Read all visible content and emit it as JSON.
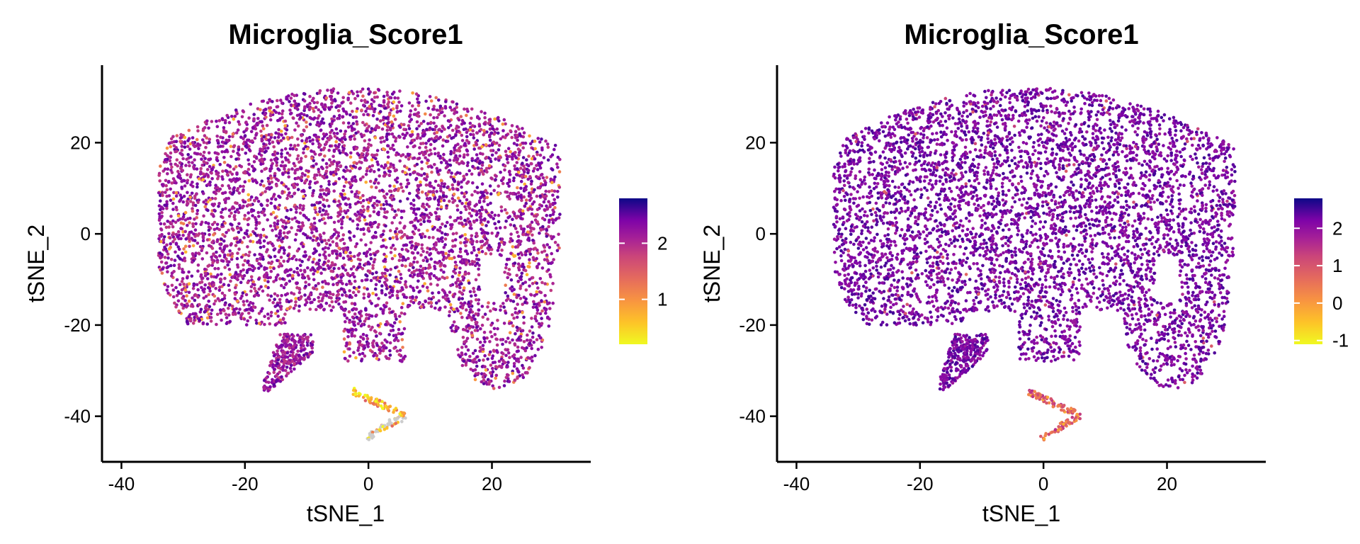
{
  "chart_data": [
    {
      "type": "scatter",
      "title": "Microglia_Score1",
      "xlabel": "tSNE_1",
      "ylabel": "tSNE_2",
      "xlim": [
        -42,
        36
      ],
      "ylim": [
        -50,
        37
      ],
      "x_ticks": [
        -40,
        -20,
        0,
        20
      ],
      "x_tick_labels": [
        "-40",
        "-20",
        "0",
        "20"
      ],
      "y_ticks": [
        -40,
        -20,
        0,
        20
      ],
      "y_tick_labels": [
        "-40",
        "-20",
        "0",
        "20"
      ],
      "grid": false,
      "legend": "right",
      "colorbar": {
        "palette": "plasma-reversed",
        "range": [
          0.2,
          2.8
        ],
        "ticks": [
          1,
          2
        ],
        "tick_labels": [
          "1",
          "2"
        ]
      },
      "na_color": "#cccccc",
      "main_cloud": {
        "x_range": [
          -34,
          31
        ],
        "y_range": [
          -34,
          32
        ],
        "typical_score": 2.2,
        "low_score_fraction": 0.08
      },
      "arm": {
        "x_range": [
          -17,
          -9
        ],
        "y_range": [
          -35,
          -22
        ],
        "typical_score": 2.2
      },
      "small_cluster": {
        "x_range": [
          -4,
          6
        ],
        "y_range": [
          -45,
          -34
        ],
        "typical_score": 0.8,
        "gray_points": true
      }
    },
    {
      "type": "scatter",
      "title": "Microglia_Score1",
      "xlabel": "tSNE_1",
      "ylabel": "tSNE_2",
      "xlim": [
        -42,
        36
      ],
      "ylim": [
        -50,
        37
      ],
      "x_ticks": [
        -40,
        -20,
        0,
        20
      ],
      "x_tick_labels": [
        "-40",
        "-20",
        "0",
        "20"
      ],
      "y_ticks": [
        -40,
        -20,
        0,
        20
      ],
      "y_tick_labels": [
        "-40",
        "-20",
        "0",
        "20"
      ],
      "grid": false,
      "legend": "right",
      "colorbar": {
        "palette": "plasma-reversed",
        "range": [
          -1.1,
          2.8
        ],
        "ticks": [
          -1,
          0,
          1,
          2
        ],
        "tick_labels": [
          "-1",
          "0",
          "1",
          "2"
        ]
      },
      "na_color": "#cccccc",
      "main_cloud": {
        "x_range": [
          -34,
          31
        ],
        "y_range": [
          -34,
          32
        ],
        "typical_score": 2.2,
        "low_score_fraction": 0.02
      },
      "arm": {
        "x_range": [
          -17,
          -9
        ],
        "y_range": [
          -35,
          -22
        ],
        "typical_score": 2.2
      },
      "small_cluster": {
        "x_range": [
          -1,
          6
        ],
        "y_range": [
          -45,
          -34
        ],
        "typical_score": 0.3,
        "gray_points": false
      }
    }
  ]
}
